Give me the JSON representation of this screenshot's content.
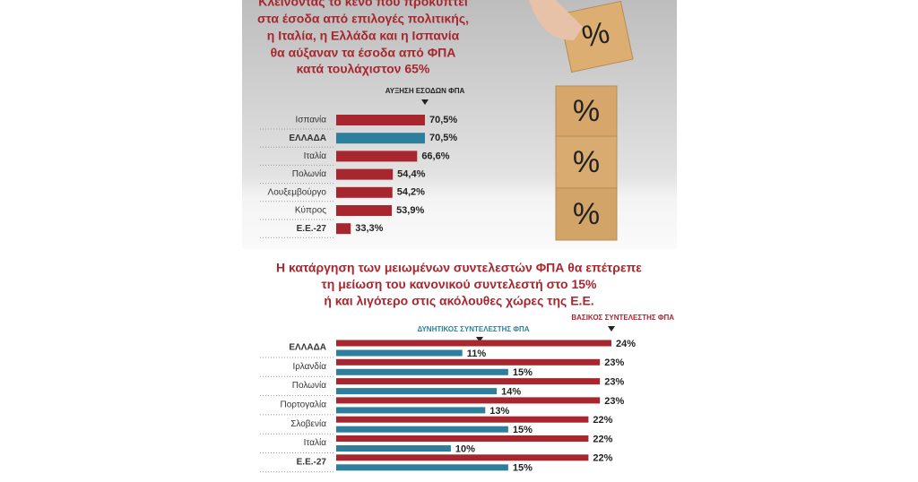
{
  "chart_data": [
    {
      "type": "hbar",
      "title": [
        "Κλείνοντας το κενό που προκύπτει",
        "στα έσοδα από επιλογές πολιτικής,",
        "η Ιταλία, η Ελλάδα και η Ισπανία",
        "θα αύξαναν τα έσοδα από ΦΠΑ",
        "κατά τουλάχιστον 65%"
      ],
      "series_label": "ΑΥΞΗΣΗ ΕΣΟΔΩΝ ΦΠΑ",
      "categories": [
        "Ισπανία",
        "ΕΛΛΑΔΑ",
        "Ιταλία",
        "Πολωνία",
        "Λουξεμβούργο",
        "Κύπρος",
        "Ε.Ε.-27"
      ],
      "values": [
        70.5,
        70.5,
        66.6,
        54.4,
        54.2,
        53.9,
        33.3
      ],
      "value_labels": [
        "70,5%",
        "70,5%",
        "66,6%",
        "54,4%",
        "54,2%",
        "53,9%",
        "33,3%"
      ],
      "colors": [
        "#a8262e",
        "#2e7f9c",
        "#a8262e",
        "#a8262e",
        "#a8262e",
        "#a8262e",
        "#a8262e"
      ],
      "xlim": [
        26,
        70.5
      ],
      "photo_text": [
        "%",
        "%",
        "%",
        "%"
      ]
    },
    {
      "type": "grouped-hbar",
      "title": [
        "Η κατάργηση των μειωμένων συντελεστών ΦΠΑ θα επέτρεπε",
        "τη μείωση του κανονικού συντελεστή στο 15%",
        "ή και λιγότερο στις ακόλουθες χώρες της Ε.Ε."
      ],
      "categories": [
        "ΕΛΛΑΔΑ",
        "Ιρλανδία",
        "Πολωνία",
        "Πορτογαλία",
        "Σλοβενία",
        "Ιταλία",
        "Ε.Ε.-27"
      ],
      "series": [
        {
          "name": "ΒΑΣΙΚΟΣ ΣΥΝΤΕΛΕΣΤΗΣ ΦΠΑ",
          "color": "#a8262e",
          "values": [
            24,
            23,
            23,
            23,
            22,
            22,
            22
          ],
          "value_labels": [
            "24%",
            "23%",
            "23%",
            "23%",
            "22%",
            "22%",
            "22%"
          ]
        },
        {
          "name": "ΔΥΝΗΤΙΚΟΣ ΣΥΝΤΕΛΕΣΤΗΣ ΦΠΑ",
          "color": "#2e7f9c",
          "values": [
            11,
            15,
            14,
            13,
            15,
            10,
            15
          ],
          "value_labels": [
            "11%",
            "15%",
            "14%",
            "13%",
            "15%",
            "10%",
            "15%"
          ]
        }
      ],
      "xlim": [
        0,
        24
      ]
    }
  ]
}
